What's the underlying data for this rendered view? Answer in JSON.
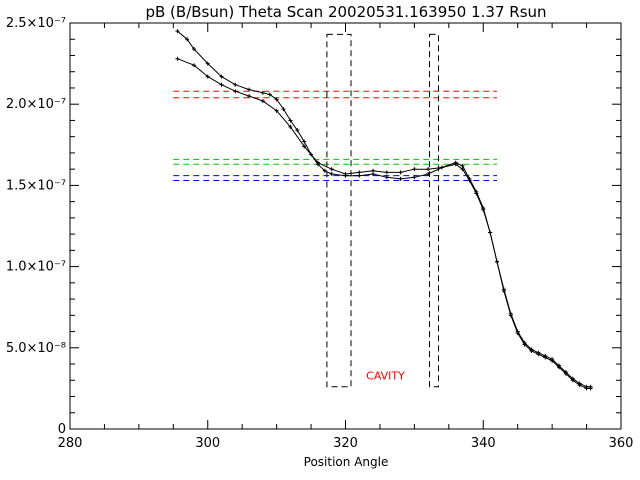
{
  "chart_data": {
    "type": "scatter",
    "title": "pB (B/Bsun) Theta Scan 20020531.163950 1.37 Rsun",
    "xlabel": "Position Angle",
    "ylabel": "",
    "xlim": [
      280,
      360
    ],
    "ylim": [
      0,
      2.5e-07
    ],
    "grid": false,
    "legend": "none",
    "colors": {
      "axes": "#000000",
      "points": "#000000",
      "red_levels": "#ff0000",
      "green_levels": "#00c000",
      "blue_levels": "#0000ff",
      "annotation": "#ff0000"
    },
    "x_ticks": [
      {
        "value": 280,
        "label": "280"
      },
      {
        "value": 300,
        "label": "300"
      },
      {
        "value": 320,
        "label": "320"
      },
      {
        "value": 340,
        "label": "340"
      },
      {
        "value": 360,
        "label": "360"
      }
    ],
    "y_ticks": [
      {
        "value": 0,
        "label": "0"
      },
      {
        "value": 5e-08,
        "label": "5.0×10⁻⁸"
      },
      {
        "value": 1e-07,
        "label": "1.0×10⁻⁷"
      },
      {
        "value": 1.5e-07,
        "label": "1.5×10⁻⁷"
      },
      {
        "value": 2e-07,
        "label": "2.0×10⁻⁷"
      },
      {
        "value": 2.5e-07,
        "label": "2.5×10⁻⁷"
      }
    ],
    "series": [
      {
        "kind": "line",
        "points": [
          [
            295.6,
            2.45e-07
          ],
          [
            297,
            2.4e-07
          ],
          [
            298,
            2.34e-07
          ],
          [
            300,
            2.25e-07
          ],
          [
            302,
            2.17e-07
          ],
          [
            304,
            2.12e-07
          ],
          [
            306,
            2.09e-07
          ],
          [
            308,
            2.07e-07
          ],
          [
            309,
            2.06e-07
          ],
          [
            310,
            2.03e-07
          ],
          [
            311,
            1.97e-07
          ],
          [
            312,
            1.9e-07
          ],
          [
            313,
            1.84e-07
          ],
          [
            314,
            1.77e-07
          ],
          [
            315,
            1.69e-07
          ],
          [
            316,
            1.63e-07
          ],
          [
            317,
            1.59e-07
          ],
          [
            318,
            1.57e-07
          ],
          [
            320,
            1.56e-07
          ],
          [
            322,
            1.56e-07
          ],
          [
            324,
            1.57e-07
          ],
          [
            326,
            1.55e-07
          ],
          [
            328,
            1.54e-07
          ],
          [
            330,
            1.55e-07
          ],
          [
            332,
            1.57e-07
          ],
          [
            334,
            1.61e-07
          ],
          [
            336,
            1.63e-07
          ],
          [
            337,
            1.6e-07
          ],
          [
            338,
            1.53e-07
          ],
          [
            339,
            1.45e-07
          ],
          [
            340,
            1.35e-07
          ],
          [
            341,
            1.21e-07
          ],
          [
            342,
            1.03e-07
          ],
          [
            343,
            8.5e-08
          ],
          [
            344,
            7e-08
          ],
          [
            345,
            5.9e-08
          ],
          [
            346,
            5.2e-08
          ],
          [
            347,
            4.8e-08
          ],
          [
            348,
            4.6e-08
          ],
          [
            349,
            4.4e-08
          ],
          [
            350,
            4.2e-08
          ],
          [
            351,
            3.8e-08
          ],
          [
            352,
            3.4e-08
          ],
          [
            353,
            3e-08
          ],
          [
            354,
            2.7e-08
          ],
          [
            355,
            2.5e-08
          ],
          [
            355.6,
            2.5e-08
          ]
        ]
      },
      {
        "kind": "line",
        "points": [
          [
            295.6,
            2.28e-07
          ],
          [
            298,
            2.24e-07
          ],
          [
            300,
            2.17e-07
          ],
          [
            302,
            2.12e-07
          ],
          [
            304,
            2.08e-07
          ],
          [
            306,
            2.05e-07
          ],
          [
            308,
            2.02e-07
          ],
          [
            310,
            1.96e-07
          ],
          [
            312,
            1.86e-07
          ],
          [
            314,
            1.74e-07
          ],
          [
            316,
            1.64e-07
          ],
          [
            318,
            1.6e-07
          ],
          [
            320,
            1.57e-07
          ],
          [
            322,
            1.58e-07
          ],
          [
            324,
            1.59e-07
          ],
          [
            326,
            1.58e-07
          ],
          [
            328,
            1.58e-07
          ],
          [
            330,
            1.6e-07
          ],
          [
            332,
            1.6e-07
          ],
          [
            334,
            1.61e-07
          ],
          [
            336,
            1.64e-07
          ],
          [
            337,
            1.62e-07
          ],
          [
            338,
            1.54e-07
          ],
          [
            339,
            1.46e-07
          ],
          [
            340,
            1.36e-07
          ],
          [
            341,
            1.21e-07
          ],
          [
            342,
            1.03e-07
          ],
          [
            343,
            8.6e-08
          ],
          [
            344,
            7.1e-08
          ],
          [
            345,
            6e-08
          ],
          [
            346,
            5.3e-08
          ],
          [
            347,
            4.9e-08
          ],
          [
            348,
            4.7e-08
          ],
          [
            349,
            4.5e-08
          ],
          [
            350,
            4.3e-08
          ],
          [
            351,
            3.9e-08
          ],
          [
            352,
            3.5e-08
          ],
          [
            353,
            3.1e-08
          ],
          [
            354,
            2.8e-08
          ],
          [
            355,
            2.6e-08
          ],
          [
            355.6,
            2.6e-08
          ]
        ]
      }
    ],
    "horizontal_levels": [
      {
        "y": 2.08e-07,
        "color": "#ff0000",
        "x_range": [
          295,
          342
        ]
      },
      {
        "y": 2.04e-07,
        "color": "#ff0000",
        "x_range": [
          295,
          342
        ]
      },
      {
        "y": 1.66e-07,
        "color": "#00c000",
        "x_range": [
          295,
          342
        ]
      },
      {
        "y": 1.63e-07,
        "color": "#00c000",
        "x_range": [
          295,
          342
        ]
      },
      {
        "y": 1.56e-07,
        "color": "#0000ff",
        "x_range": [
          295,
          342
        ]
      },
      {
        "y": 1.53e-07,
        "color": "#0000ff",
        "x_range": [
          295,
          342
        ]
      }
    ],
    "dashed_boxes": [
      {
        "x_range": [
          317.3,
          320.8
        ],
        "y_range": [
          2.6e-08,
          2.43e-07
        ]
      },
      {
        "x_range": [
          332.2,
          333.5
        ],
        "y_range": [
          2.6e-08,
          2.43e-07
        ]
      }
    ],
    "annotations": [
      {
        "text": "CAVITY",
        "x": 323,
        "y": 2.8e-08,
        "color": "#ff0000"
      }
    ]
  }
}
